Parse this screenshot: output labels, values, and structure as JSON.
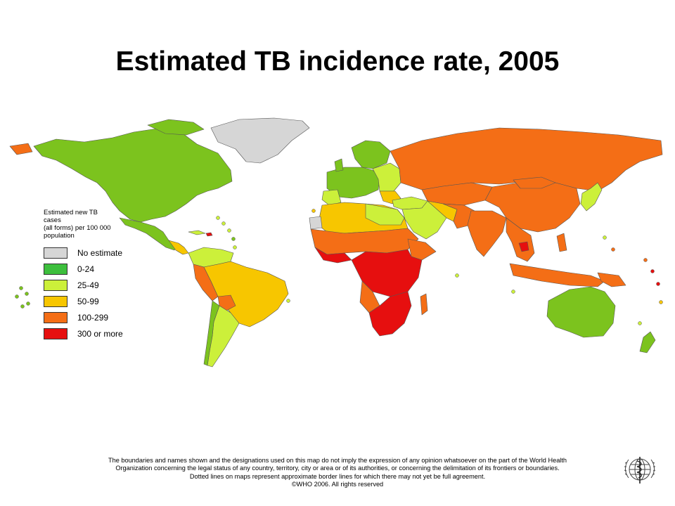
{
  "title": "Estimated TB incidence rate, 2005",
  "legend": {
    "title": "Estimated new TB\ncases\n(all forms) per 100 000\npopulation",
    "items": [
      {
        "label": "No estimate",
        "color": "#d6d6d6"
      },
      {
        "label": "0-24",
        "color": "#3dbf3d"
      },
      {
        "label": "25-49",
        "color": "#ccf03a"
      },
      {
        "label": "50-99",
        "color": "#f7c600"
      },
      {
        "label": "100-299",
        "color": "#f46e16"
      },
      {
        "label": "300 or more",
        "color": "#e60f0f"
      }
    ]
  },
  "map_colors": {
    "no_estimate": "#d6d6d6",
    "low": "#7cc31e",
    "mid_low": "#ccf03a",
    "mid": "#f7c600",
    "high": "#f46e16",
    "very_high": "#e60f0f",
    "border": "#555555"
  },
  "footer": {
    "line1": "The boundaries and names shown and the designations used on this map do not imply the expression of any opinion whatsoever on the part of the World Health",
    "line2": "Organization concerning the legal status of any country, territory, city or area or of its authorities, or concerning the delimitation of its frontiers or boundaries.",
    "line3": "Dotted lines on maps represent approximate border lines for which there may not yet be full agreement.",
    "copyright": "©WHO 2006. All rights reserved"
  },
  "emblem": "who-emblem"
}
